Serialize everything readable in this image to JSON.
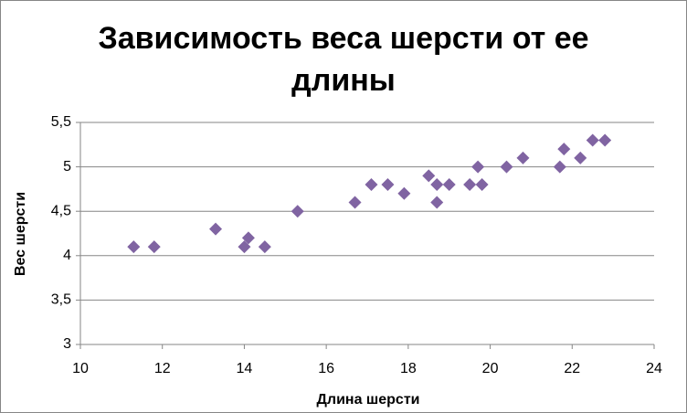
{
  "chart_data": {
    "type": "scatter",
    "title": "Зависимость веса шерсти от ее длины",
    "x_label": "Длина шерсти",
    "y_label": "Вес шерсти",
    "x": [
      11.3,
      11.8,
      13.3,
      14.0,
      14.1,
      14.5,
      15.3,
      16.7,
      17.1,
      17.5,
      17.9,
      18.5,
      18.7,
      18.7,
      19.0,
      19.5,
      19.7,
      19.8,
      20.4,
      20.8,
      21.7,
      21.8,
      22.2,
      22.5,
      22.8
    ],
    "values": [
      4.1,
      4.1,
      4.3,
      4.1,
      4.2,
      4.1,
      4.5,
      4.6,
      4.8,
      4.8,
      4.7,
      4.9,
      4.8,
      4.6,
      4.8,
      4.8,
      5.0,
      4.8,
      5.0,
      5.1,
      5.0,
      5.2,
      5.1,
      5.3,
      5.3
    ],
    "color": "#8064a2",
    "xlim": [
      10,
      24
    ],
    "xticks": [
      10,
      12,
      14,
      16,
      18,
      20,
      22,
      24
    ],
    "ylim": [
      3,
      5.5
    ],
    "yticks": [
      3,
      {
        "value": 3.5,
        "label": "3,5"
      },
      4,
      {
        "value": 4.5,
        "label": "4,5"
      },
      5,
      {
        "value": 5.5,
        "label": "5,5"
      }
    ],
    "grid": true
  }
}
